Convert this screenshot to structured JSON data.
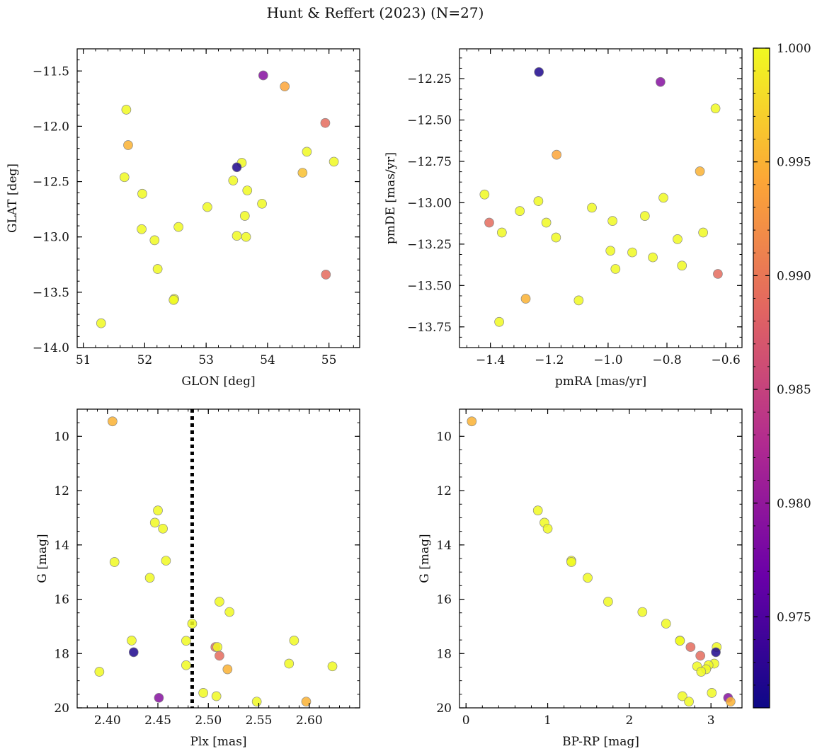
{
  "figure": {
    "title": "Hunt & Reffert (2023) (N=27)"
  },
  "colorbar": {
    "min": 0.971,
    "max": 1.0,
    "ticks": [
      0.975,
      0.98,
      0.985,
      0.99,
      0.995,
      1.0
    ],
    "tick_labels": [
      "0.975",
      "0.980",
      "0.985",
      "0.990",
      "0.995",
      "1.000"
    ],
    "colormap": "plasma",
    "stops": [
      "#0d0887",
      "#6a00a8",
      "#b12a90",
      "#e16462",
      "#fca636",
      "#f0f921"
    ]
  },
  "chart_data": [
    {
      "id": "panel-glon-glat",
      "type": "scatter",
      "xlabel": "GLON [deg]",
      "ylabel": "GLAT [deg]",
      "xlim": [
        50.9,
        55.5
      ],
      "ylim": [
        -14.0,
        -11.3
      ],
      "xticks": [
        51,
        52,
        53,
        54,
        55
      ],
      "xtick_labels": [
        "51",
        "52",
        "53",
        "54",
        "55"
      ],
      "yticks": [
        -14.0,
        -13.5,
        -13.0,
        -12.5,
        -12.0,
        -11.5
      ],
      "ytick_labels": [
        "−14.0",
        "−13.5",
        "−13.0",
        "−12.5",
        "−12.0",
        "−11.5"
      ],
      "points": [
        {
          "x": 53.93,
          "y": -11.54,
          "c": 0.979
        },
        {
          "x": 54.28,
          "y": -11.64,
          "c": 0.994
        },
        {
          "x": 51.7,
          "y": -11.85,
          "c": 1.0
        },
        {
          "x": 54.94,
          "y": -11.97,
          "c": 0.989
        },
        {
          "x": 51.73,
          "y": -12.17,
          "c": 0.995
        },
        {
          "x": 54.64,
          "y": -12.23,
          "c": 1.0
        },
        {
          "x": 55.08,
          "y": -12.32,
          "c": 1.0
        },
        {
          "x": 53.58,
          "y": -12.33,
          "c": 1.0
        },
        {
          "x": 53.5,
          "y": -12.37,
          "c": 0.972
        },
        {
          "x": 54.57,
          "y": -12.42,
          "c": 0.996
        },
        {
          "x": 51.67,
          "y": -12.46,
          "c": 1.0
        },
        {
          "x": 53.44,
          "y": -12.49,
          "c": 1.0
        },
        {
          "x": 53.67,
          "y": -12.58,
          "c": 1.0
        },
        {
          "x": 51.96,
          "y": -12.61,
          "c": 1.0
        },
        {
          "x": 53.91,
          "y": -12.7,
          "c": 1.0
        },
        {
          "x": 53.02,
          "y": -12.73,
          "c": 1.0
        },
        {
          "x": 53.63,
          "y": -12.81,
          "c": 1.0
        },
        {
          "x": 52.55,
          "y": -12.91,
          "c": 1.0
        },
        {
          "x": 51.95,
          "y": -12.93,
          "c": 1.0
        },
        {
          "x": 53.5,
          "y": -12.99,
          "c": 1.0
        },
        {
          "x": 53.65,
          "y": -13.0,
          "c": 1.0
        },
        {
          "x": 52.16,
          "y": -13.03,
          "c": 1.0
        },
        {
          "x": 52.21,
          "y": -13.29,
          "c": 1.0
        },
        {
          "x": 54.95,
          "y": -13.34,
          "c": 0.989
        },
        {
          "x": 52.48,
          "y": -13.56,
          "c": 1.0
        },
        {
          "x": 52.47,
          "y": -13.57,
          "c": 1.0
        },
        {
          "x": 51.29,
          "y": -13.78,
          "c": 1.0
        }
      ]
    },
    {
      "id": "panel-pmra-pmde",
      "type": "scatter",
      "xlabel": "pmRA [mas/yr]",
      "ylabel": "pmDE [mas/yr]",
      "xlim": [
        -1.505,
        -0.545
      ],
      "ylim": [
        -13.875,
        -12.07
      ],
      "xticks": [
        -1.4,
        -1.2,
        -1.0,
        -0.8,
        -0.6
      ],
      "xtick_labels": [
        "−1.4",
        "−1.2",
        "−1.0",
        "−0.8",
        "−0.6"
      ],
      "yticks": [
        -13.75,
        -13.5,
        -13.25,
        -13.0,
        -12.75,
        -12.5,
        -12.25
      ],
      "ytick_labels": [
        "−13.75",
        "−13.50",
        "−13.25",
        "−13.00",
        "−12.75",
        "−12.50",
        "−12.25"
      ],
      "points": [
        {
          "x": -1.235,
          "y": -12.21,
          "c": 0.972
        },
        {
          "x": -0.822,
          "y": -12.27,
          "c": 0.979
        },
        {
          "x": -0.635,
          "y": -12.43,
          "c": 1.0
        },
        {
          "x": -1.175,
          "y": -12.71,
          "c": 0.994
        },
        {
          "x": -0.688,
          "y": -12.81,
          "c": 0.995
        },
        {
          "x": -1.42,
          "y": -12.95,
          "c": 1.0
        },
        {
          "x": -0.812,
          "y": -12.97,
          "c": 1.0
        },
        {
          "x": -1.237,
          "y": -12.99,
          "c": 1.0
        },
        {
          "x": -1.055,
          "y": -13.03,
          "c": 1.0
        },
        {
          "x": -1.3,
          "y": -13.05,
          "c": 1.0
        },
        {
          "x": -0.875,
          "y": -13.08,
          "c": 1.0
        },
        {
          "x": -0.985,
          "y": -13.11,
          "c": 1.0
        },
        {
          "x": -1.404,
          "y": -13.12,
          "c": 0.989
        },
        {
          "x": -1.21,
          "y": -13.12,
          "c": 1.0
        },
        {
          "x": -1.361,
          "y": -13.18,
          "c": 1.0
        },
        {
          "x": -0.677,
          "y": -13.18,
          "c": 1.0
        },
        {
          "x": -1.177,
          "y": -13.21,
          "c": 1.0
        },
        {
          "x": -0.764,
          "y": -13.22,
          "c": 1.0
        },
        {
          "x": -0.992,
          "y": -13.29,
          "c": 1.0
        },
        {
          "x": -0.918,
          "y": -13.3,
          "c": 1.0
        },
        {
          "x": -0.848,
          "y": -13.33,
          "c": 1.0
        },
        {
          "x": -0.749,
          "y": -13.38,
          "c": 1.0
        },
        {
          "x": -0.975,
          "y": -13.4,
          "c": 1.0
        },
        {
          "x": -0.627,
          "y": -13.43,
          "c": 0.989
        },
        {
          "x": -1.28,
          "y": -13.58,
          "c": 0.995
        },
        {
          "x": -1.1,
          "y": -13.59,
          "c": 1.0
        },
        {
          "x": -1.37,
          "y": -13.72,
          "c": 1.0
        }
      ]
    },
    {
      "id": "panel-plx-g",
      "type": "scatter",
      "xlabel": "Plx [mas]",
      "ylabel": "G [mag]",
      "xlim": [
        2.37,
        2.65
      ],
      "ylim": [
        20.0,
        9.0
      ],
      "y_inverted": true,
      "xticks": [
        2.4,
        2.45,
        2.5,
        2.55,
        2.6
      ],
      "xtick_labels": [
        "2.40",
        "2.45",
        "2.50",
        "2.55",
        "2.60"
      ],
      "yticks": [
        10,
        12,
        14,
        16,
        18,
        20
      ],
      "ytick_labels": [
        "10",
        "12",
        "14",
        "16",
        "18",
        "20"
      ],
      "vline": {
        "x": 2.484,
        "style": "dotted"
      },
      "points": [
        {
          "x": 2.405,
          "y": 9.45,
          "c": 0.995
        },
        {
          "x": 2.45,
          "y": 12.73,
          "c": 1.0
        },
        {
          "x": 2.447,
          "y": 13.18,
          "c": 1.0
        },
        {
          "x": 2.455,
          "y": 13.4,
          "c": 1.0
        },
        {
          "x": 2.407,
          "y": 14.63,
          "c": 1.0
        },
        {
          "x": 2.458,
          "y": 14.58,
          "c": 1.0
        },
        {
          "x": 2.442,
          "y": 15.21,
          "c": 1.0
        },
        {
          "x": 2.511,
          "y": 16.09,
          "c": 1.0
        },
        {
          "x": 2.521,
          "y": 16.47,
          "c": 1.0
        },
        {
          "x": 2.484,
          "y": 16.9,
          "c": 1.0
        },
        {
          "x": 2.424,
          "y": 17.52,
          "c": 1.0
        },
        {
          "x": 2.478,
          "y": 17.53,
          "c": 1.0
        },
        {
          "x": 2.585,
          "y": 17.52,
          "c": 1.0
        },
        {
          "x": 2.507,
          "y": 17.76,
          "c": 0.989
        },
        {
          "x": 2.509,
          "y": 17.76,
          "c": 1.0
        },
        {
          "x": 2.426,
          "y": 17.95,
          "c": 0.972
        },
        {
          "x": 2.511,
          "y": 18.08,
          "c": 0.989
        },
        {
          "x": 2.58,
          "y": 18.37,
          "c": 1.0
        },
        {
          "x": 2.478,
          "y": 18.43,
          "c": 1.0
        },
        {
          "x": 2.623,
          "y": 18.47,
          "c": 1.0
        },
        {
          "x": 2.519,
          "y": 18.58,
          "c": 0.995
        },
        {
          "x": 2.392,
          "y": 18.67,
          "c": 1.0
        },
        {
          "x": 2.495,
          "y": 19.45,
          "c": 1.0
        },
        {
          "x": 2.508,
          "y": 19.57,
          "c": 1.0
        },
        {
          "x": 2.451,
          "y": 19.63,
          "c": 0.979
        },
        {
          "x": 2.548,
          "y": 19.77,
          "c": 1.0
        },
        {
          "x": 2.597,
          "y": 19.77,
          "c": 0.995
        }
      ]
    },
    {
      "id": "panel-bprp-g",
      "type": "scatter",
      "xlabel": "BP-RP [mag]",
      "ylabel": "G [mag]",
      "xlim": [
        -0.08,
        3.38
      ],
      "ylim": [
        20.0,
        9.0
      ],
      "y_inverted": true,
      "xticks": [
        0,
        1,
        2,
        3
      ],
      "xtick_labels": [
        "0",
        "1",
        "2",
        "3"
      ],
      "yticks": [
        10,
        12,
        14,
        16,
        18,
        20
      ],
      "ytick_labels": [
        "10",
        "12",
        "14",
        "16",
        "18",
        "20"
      ],
      "points": [
        {
          "x": 0.07,
          "y": 9.45,
          "c": 0.995
        },
        {
          "x": 0.88,
          "y": 12.73,
          "c": 1.0
        },
        {
          "x": 0.96,
          "y": 13.18,
          "c": 1.0
        },
        {
          "x": 1.0,
          "y": 13.4,
          "c": 1.0
        },
        {
          "x": 1.29,
          "y": 14.58,
          "c": 1.0
        },
        {
          "x": 1.29,
          "y": 14.63,
          "c": 1.0
        },
        {
          "x": 1.49,
          "y": 15.21,
          "c": 1.0
        },
        {
          "x": 1.74,
          "y": 16.09,
          "c": 1.0
        },
        {
          "x": 2.16,
          "y": 16.47,
          "c": 1.0
        },
        {
          "x": 2.45,
          "y": 16.9,
          "c": 1.0
        },
        {
          "x": 2.62,
          "y": 17.52,
          "c": 1.0
        },
        {
          "x": 2.62,
          "y": 17.53,
          "c": 1.0
        },
        {
          "x": 2.75,
          "y": 17.76,
          "c": 0.989
        },
        {
          "x": 3.07,
          "y": 17.76,
          "c": 1.0
        },
        {
          "x": 3.06,
          "y": 17.95,
          "c": 0.972
        },
        {
          "x": 2.87,
          "y": 18.08,
          "c": 0.989
        },
        {
          "x": 3.04,
          "y": 18.37,
          "c": 1.0
        },
        {
          "x": 2.97,
          "y": 18.43,
          "c": 1.0
        },
        {
          "x": 2.83,
          "y": 18.47,
          "c": 1.0
        },
        {
          "x": 2.94,
          "y": 18.58,
          "c": 1.0
        },
        {
          "x": 2.88,
          "y": 18.67,
          "c": 1.0
        },
        {
          "x": 3.01,
          "y": 19.45,
          "c": 1.0
        },
        {
          "x": 2.65,
          "y": 19.57,
          "c": 1.0
        },
        {
          "x": 3.21,
          "y": 19.63,
          "c": 0.979
        },
        {
          "x": 2.73,
          "y": 19.77,
          "c": 1.0
        },
        {
          "x": 3.24,
          "y": 19.77,
          "c": 0.995
        }
      ]
    }
  ]
}
